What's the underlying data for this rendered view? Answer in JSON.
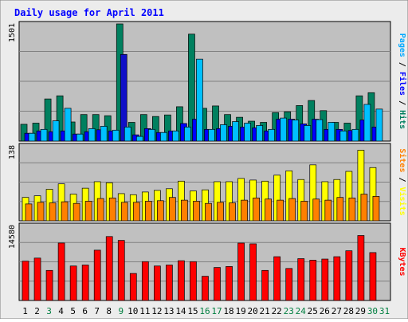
{
  "chart_data": {
    "type": "bar",
    "title": "Daily usage for April 2011",
    "categories": [
      "1",
      "2",
      "3",
      "4",
      "5",
      "6",
      "7",
      "8",
      "9",
      "10",
      "11",
      "12",
      "13",
      "14",
      "15",
      "16",
      "17",
      "18",
      "19",
      "20",
      "21",
      "22",
      "23",
      "24",
      "25",
      "26",
      "27",
      "28",
      "29",
      "30",
      "31"
    ],
    "weekend_days": [
      "3",
      "9",
      "16",
      "17",
      "23",
      "24",
      "30",
      "31"
    ],
    "colors": {
      "title": "#0000ff",
      "plot_bg": "#c0c0c0",
      "frame_bg": "#ececec",
      "gridline": "#808080",
      "weekday_label": "#000000",
      "weekend_label": "#007f40",
      "highlight_day": "9",
      "highlight_color": "#1010c8"
    },
    "panels": [
      {
        "name": "top",
        "ymax_label": "1501",
        "ylim": [
          0,
          1501
        ],
        "axis_label_parts": [
          {
            "text": "Pages",
            "color": "#00a8ff"
          },
          {
            "text": " / ",
            "color": "#000000"
          },
          {
            "text": "Files",
            "color": "#0000ff"
          },
          {
            "text": " / ",
            "color": "#000000"
          },
          {
            "text": "Hits",
            "color": "#007f5f"
          }
        ],
        "series": [
          {
            "name": "Hits",
            "color": "#00805f",
            "values": [
              215,
              230,
              540,
              580,
              245,
              340,
              340,
              325,
              1501,
              240,
              340,
              315,
              335,
              440,
              1370,
              420,
              450,
              340,
              305,
              255,
              240,
              365,
              375,
              455,
              520,
              390,
              240,
              230,
              580,
              620,
              0
            ]
          },
          {
            "name": "Files",
            "color": "#0000ff",
            "values": [
              100,
              130,
              120,
              130,
              90,
              120,
              145,
              130,
              1110,
              80,
              160,
              110,
              130,
              225,
              280,
              150,
              160,
              190,
              180,
              170,
              130,
              280,
              280,
              220,
              280,
              150,
              150,
              135,
              270,
              180,
              0
            ]
          },
          {
            "name": "Pages",
            "color": "#00c0ff",
            "values": [
              100,
              150,
              260,
              420,
              90,
              160,
              190,
              140,
              180,
              60,
              150,
              110,
              130,
              180,
              1050,
              150,
              210,
              250,
              230,
              200,
              150,
              295,
              270,
              200,
              275,
              240,
              130,
              150,
              470,
              410,
              0
            ]
          }
        ]
      },
      {
        "name": "middle",
        "ymax_label": "138",
        "ylim": [
          0,
          138
        ],
        "axis_label_parts": [
          {
            "text": "Sites",
            "color": "#ff8000"
          },
          {
            "text": " / ",
            "color": "#000000"
          },
          {
            "text": "Visits",
            "color": "#ffff00"
          }
        ],
        "series": [
          {
            "name": "Visits",
            "color": "#ffff00",
            "values": [
              43,
              46,
              58,
              68,
              49,
              60,
              72,
              70,
              50,
              48,
              53,
              56,
              59,
              73,
              55,
              57,
              72,
              72,
              78,
              75,
              73,
              84,
              92,
              76,
              103,
              72,
              76,
              91,
              130,
              98,
              0
            ]
          },
          {
            "name": "Sites",
            "color": "#ff8000",
            "values": [
              31,
              34,
              33,
              35,
              32,
              36,
              41,
              42,
              34,
              34,
              36,
              37,
              43,
              38,
              36,
              32,
              34,
              33,
              38,
              42,
              40,
              38,
              41,
              36,
              40,
              38,
              43,
              42,
              49,
              45,
              0
            ]
          }
        ]
      },
      {
        "name": "bottom",
        "ymax_label": "14580",
        "ylim": [
          0,
          14580
        ],
        "axis_label_parts": [
          {
            "text": "KBytes",
            "color": "#ff0000"
          }
        ],
        "series": [
          {
            "name": "KBytes",
            "color": "#ff0000",
            "values": [
              7650,
              8250,
              5850,
              11180,
              6710,
              6900,
              9790,
              12440,
              11690,
              5260,
              7560,
              6710,
              6900,
              7740,
              7560,
              4710,
              6420,
              6610,
              11170,
              11020,
              5850,
              8520,
              6230,
              8140,
              7840,
              8060,
              8520,
              9670,
              12640,
              9320,
              0
            ]
          }
        ]
      }
    ],
    "grid": true
  }
}
